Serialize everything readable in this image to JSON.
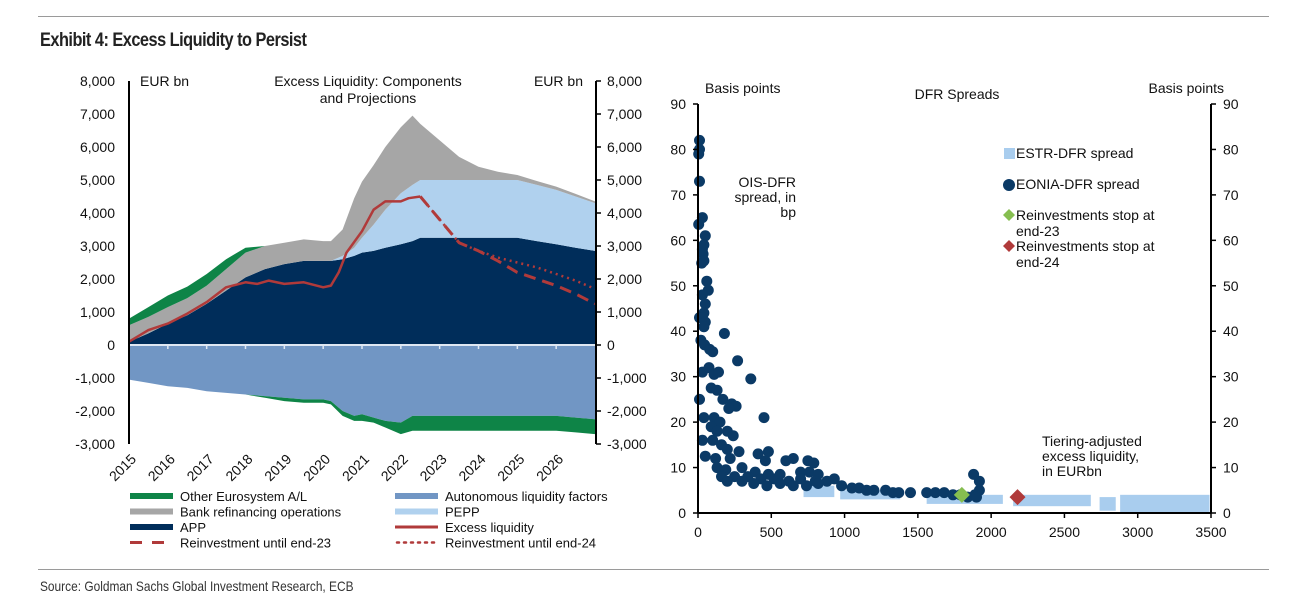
{
  "exhibit_title": "Exhibit 4: Excess Liquidity to Persist",
  "source": "Source: Goldman Sachs Global Investment Research, ECB",
  "colors": {
    "other_eurosystem": "#0e8447",
    "bank_refi": "#a6a6a6",
    "app": "#002d5a",
    "autonomous": "#7196c4",
    "pepp": "#b0d1ee",
    "excess": "#b03a3a",
    "estr": "#a9cdee",
    "eonia": "#0b3a66",
    "stop23": "#86be50",
    "stop24": "#b03a3a"
  },
  "chart_data": [
    {
      "type": "area",
      "title": "Excess Liquidity: Components and Projections",
      "ylabel_left": "EUR bn",
      "ylabel_right": "EUR bn",
      "ylim": [
        -3000,
        8000
      ],
      "yticks": [
        "8,000",
        "7,000",
        "6,000",
        "5,000",
        "4,000",
        "3,000",
        "2,000",
        "1,000",
        "0",
        "-1,000",
        "-2,000",
        "-3,000"
      ],
      "ytick_values": [
        8000,
        7000,
        6000,
        5000,
        4000,
        3000,
        2000,
        1000,
        0,
        -1000,
        -2000,
        -3000
      ],
      "xticks": [
        "2015",
        "2016",
        "2017",
        "2018",
        "2019",
        "2020",
        "2021",
        "2022",
        "2023",
        "2024",
        "2025",
        "2026"
      ],
      "xlim": [
        2015,
        2027
      ],
      "x": [
        2015.0,
        2015.5,
        2016.0,
        2016.5,
        2017.0,
        2017.5,
        2018.0,
        2018.5,
        2019.0,
        2019.5,
        2020.0,
        2020.2,
        2020.5,
        2020.8,
        2021.0,
        2021.3,
        2021.6,
        2022.0,
        2022.3,
        2022.5,
        2023.0,
        2023.5,
        2024.0,
        2024.5,
        2025.0,
        2025.5,
        2026.0,
        2026.5,
        2027.0
      ],
      "series": [
        {
          "name": "APP",
          "key": "app",
          "values": [
            100,
            350,
            650,
            900,
            1250,
            1650,
            2050,
            2300,
            2450,
            2550,
            2550,
            2550,
            2600,
            2700,
            2800,
            2850,
            2950,
            3050,
            3150,
            3250,
            3250,
            3250,
            3250,
            3250,
            3250,
            3150,
            3050,
            2950,
            2850
          ]
        },
        {
          "name": "PEPP",
          "key": "pepp",
          "values": [
            0,
            0,
            0,
            0,
            0,
            0,
            0,
            0,
            0,
            0,
            0,
            0,
            100,
            250,
            450,
            800,
            1150,
            1550,
            1700,
            1750,
            1750,
            1750,
            1750,
            1750,
            1750,
            1700,
            1650,
            1550,
            1450
          ]
        },
        {
          "name": "Bank refinancing operations",
          "key": "bank_refi",
          "values": [
            500,
            500,
            500,
            520,
            550,
            650,
            750,
            700,
            650,
            650,
            600,
            600,
            800,
            1500,
            1700,
            1800,
            1900,
            2000,
            2100,
            1700,
            1200,
            700,
            400,
            250,
            150,
            120,
            100,
            80,
            50
          ]
        },
        {
          "name": "Other Eurosystem A/L",
          "key": "other_eurosystem",
          "values": [
            200,
            300,
            350,
            350,
            350,
            300,
            150,
            0,
            0,
            0,
            0,
            0,
            0,
            0,
            0,
            0,
            0,
            0,
            0,
            0,
            0,
            0,
            0,
            0,
            0,
            0,
            0,
            0,
            0
          ]
        },
        {
          "name": "Autonomous liquidity factors",
          "key": "autonomous",
          "values": [
            -1050,
            -1150,
            -1250,
            -1300,
            -1400,
            -1450,
            -1500,
            -1550,
            -1600,
            -1650,
            -1650,
            -1700,
            -2000,
            -2150,
            -2100,
            -2200,
            -2300,
            -2350,
            -2150,
            -2150,
            -2150,
            -2150,
            -2150,
            -2150,
            -2150,
            -2150,
            -2150,
            -2200,
            -2250
          ]
        },
        {
          "name": "Other Eurosystem A/L (negative)",
          "key": "other_eurosystem",
          "values": [
            0,
            0,
            0,
            0,
            0,
            0,
            0,
            -50,
            -100,
            -100,
            -100,
            -100,
            -150,
            -150,
            -200,
            -150,
            -200,
            -350,
            -450,
            -450,
            -450,
            -450,
            -450,
            -450,
            -450,
            -450,
            -450,
            -450,
            -450
          ]
        }
      ],
      "lines": {
        "excess_liquidity": {
          "name": "Excess liquidity",
          "x": [
            2015.0,
            2015.5,
            2016.0,
            2016.5,
            2017.0,
            2017.5,
            2018.0,
            2018.3,
            2018.6,
            2019.0,
            2019.5,
            2020.0,
            2020.2,
            2020.4,
            2020.6,
            2021.0,
            2021.3,
            2021.6,
            2022.0,
            2022.2,
            2022.5
          ],
          "y": [
            100,
            450,
            650,
            950,
            1300,
            1750,
            1900,
            1850,
            1950,
            1850,
            1900,
            1750,
            1800,
            2200,
            2800,
            3450,
            4100,
            4350,
            4350,
            4450,
            4500
          ]
        },
        "reinvest_end23": {
          "name": "Reinvestment until end-23",
          "x": [
            2022.5,
            2023.0,
            2023.5,
            2024.0,
            2024.5,
            2025.0,
            2025.5,
            2026.0,
            2026.5,
            2027.0
          ],
          "y": [
            4500,
            3800,
            3100,
            2850,
            2550,
            2200,
            2000,
            1800,
            1550,
            1250
          ]
        },
        "reinvest_end24": {
          "name": "Reinvestment until end-24",
          "x": [
            2022.5,
            2023.0,
            2023.5,
            2024.0,
            2024.5,
            2025.0,
            2025.5,
            2026.0,
            2026.5,
            2027.0
          ],
          "y": [
            4500,
            3800,
            3100,
            2850,
            2650,
            2500,
            2350,
            2150,
            1950,
            1700
          ]
        }
      },
      "legend": [
        {
          "label": "Other Eurosystem A/L",
          "style": "bar",
          "color_key": "other_eurosystem"
        },
        {
          "label": "Autonomous liquidity factors",
          "style": "bar",
          "color_key": "autonomous"
        },
        {
          "label": "Bank refinancing operations",
          "style": "bar",
          "color_key": "bank_refi"
        },
        {
          "label": "PEPP",
          "style": "bar",
          "color_key": "pepp"
        },
        {
          "label": "APP",
          "style": "bar",
          "color_key": "app"
        },
        {
          "label": "Excess liquidity",
          "style": "line",
          "color_key": "excess"
        },
        {
          "label": "Reinvestment until end-23",
          "style": "dash",
          "color_key": "excess"
        },
        {
          "label": "Reinvestment until end-24",
          "style": "dot",
          "color_key": "excess"
        }
      ],
      "legend_position": "bottom"
    },
    {
      "type": "scatter",
      "title": "DFR Spreads",
      "ylabel_left": "Basis points",
      "ylabel_right": "Basis points",
      "xlim": [
        0,
        3500
      ],
      "ylim": [
        0,
        90
      ],
      "xticks": [
        0,
        500,
        1000,
        1500,
        2000,
        2500,
        3000,
        3500
      ],
      "yticks": [
        0,
        10,
        20,
        30,
        40,
        50,
        60,
        70,
        80,
        90
      ],
      "annotations": [
        {
          "text": "OIS-DFR spread, in bp",
          "lines": [
            "OIS-DFR",
            "spread, in",
            "bp"
          ]
        },
        {
          "text": "Tiering-adjusted excess liquidity, in EURbn",
          "lines": [
            "Tiering-adjusted",
            "excess liquidity,",
            "in EURbn"
          ]
        }
      ],
      "series": [
        {
          "name": "ESTR-DFR spread",
          "marker": "square",
          "color_key": "estr",
          "segments": [
            [
              720,
              930,
              3.5,
              6
            ],
            [
              970,
              1380,
              3,
              5
            ],
            [
              1560,
              2080,
              2,
              4
            ],
            [
              2150,
              2680,
              1.5,
              4
            ],
            [
              2740,
              2850,
              0.5,
              3.5
            ],
            [
              2880,
              3490,
              0,
              4
            ]
          ]
        },
        {
          "name": "EONIA-DFR spread",
          "marker": "circle",
          "color_key": "eonia",
          "points": [
            [
              10,
              82
            ],
            [
              10,
              80
            ],
            [
              5,
              79
            ],
            [
              10,
              73
            ],
            [
              5,
              63.5
            ],
            [
              30,
              65
            ],
            [
              50,
              61
            ],
            [
              40,
              59
            ],
            [
              30,
              58
            ],
            [
              35,
              57
            ],
            [
              25,
              55
            ],
            [
              40,
              55.5
            ],
            [
              60,
              51
            ],
            [
              70,
              49
            ],
            [
              30,
              48
            ],
            [
              50,
              46
            ],
            [
              40,
              44
            ],
            [
              10,
              43
            ],
            [
              30,
              43
            ],
            [
              50,
              42
            ],
            [
              40,
              41
            ],
            [
              20,
              38
            ],
            [
              45,
              37
            ],
            [
              80,
              36
            ],
            [
              100,
              35.5
            ],
            [
              180,
              39.5
            ],
            [
              270,
              33.5
            ],
            [
              30,
              31
            ],
            [
              75,
              32
            ],
            [
              110,
              30.5
            ],
            [
              140,
              31
            ],
            [
              360,
              29.5
            ],
            [
              10,
              25
            ],
            [
              90,
              27.5
            ],
            [
              130,
              27
            ],
            [
              170,
              25
            ],
            [
              230,
              24
            ],
            [
              260,
              23.5
            ],
            [
              210,
              23
            ],
            [
              40,
              21
            ],
            [
              110,
              21
            ],
            [
              150,
              20
            ],
            [
              450,
              21
            ],
            [
              90,
              19
            ],
            [
              130,
              18
            ],
            [
              200,
              18
            ],
            [
              240,
              17
            ],
            [
              30,
              16
            ],
            [
              100,
              16
            ],
            [
              160,
              15
            ],
            [
              200,
              14
            ],
            [
              280,
              13.5
            ],
            [
              410,
              13
            ],
            [
              480,
              13.5
            ],
            [
              50,
              12.5
            ],
            [
              120,
              12
            ],
            [
              220,
              12
            ],
            [
              460,
              11.5
            ],
            [
              600,
              11.5
            ],
            [
              650,
              12
            ],
            [
              750,
              11.5
            ],
            [
              790,
              11
            ],
            [
              130,
              10
            ],
            [
              190,
              9.5
            ],
            [
              300,
              10
            ],
            [
              390,
              9
            ],
            [
              480,
              8.5
            ],
            [
              560,
              8.5
            ],
            [
              700,
              9
            ],
            [
              760,
              9
            ],
            [
              820,
              8.5
            ],
            [
              160,
              8
            ],
            [
              250,
              8
            ],
            [
              340,
              8
            ],
            [
              430,
              7.5
            ],
            [
              520,
              7.5
            ],
            [
              620,
              7
            ],
            [
              700,
              7.5
            ],
            [
              800,
              7
            ],
            [
              880,
              7
            ],
            [
              930,
              7.5
            ],
            [
              200,
              7
            ],
            [
              300,
              7
            ],
            [
              380,
              6.5
            ],
            [
              470,
              6
            ],
            [
              560,
              6.5
            ],
            [
              650,
              6
            ],
            [
              740,
              6
            ],
            [
              820,
              6.5
            ],
            [
              980,
              6
            ],
            [
              1050,
              5.5
            ],
            [
              1100,
              5.5
            ],
            [
              1150,
              5
            ],
            [
              1200,
              5
            ],
            [
              1280,
              5
            ],
            [
              1330,
              4.5
            ],
            [
              1370,
              4.5
            ],
            [
              1450,
              4.5
            ],
            [
              1560,
              4.5
            ],
            [
              1620,
              4.5
            ],
            [
              1680,
              4.5
            ],
            [
              1740,
              4
            ],
            [
              1790,
              4
            ],
            [
              1840,
              3.5
            ],
            [
              1890,
              4
            ],
            [
              1920,
              5
            ],
            [
              1920,
              7
            ],
            [
              1880,
              8.5
            ],
            [
              1900,
              3.5
            ]
          ]
        },
        {
          "name": "Reinvestments stop at end-23",
          "marker": "diamond",
          "color_key": "stop23",
          "points": [
            [
              1800,
              4
            ]
          ]
        },
        {
          "name": "Reinvestments stop at end-24",
          "marker": "diamond",
          "color_key": "stop24",
          "points": [
            [
              2180,
              3.5
            ]
          ]
        }
      ],
      "legend": [
        {
          "label": "ESTR-DFR spread",
          "lines": [
            "ESTR-DFR spread"
          ],
          "marker": "square",
          "color_key": "estr"
        },
        {
          "label": "EONIA-DFR spread",
          "lines": [
            "EONIA-DFR spread"
          ],
          "marker": "circle",
          "color_key": "eonia"
        },
        {
          "label": "Reinvestments stop at end-23",
          "lines": [
            "Reinvestments stop at",
            "end-23"
          ],
          "marker": "diamond",
          "color_key": "stop23"
        },
        {
          "label": "Reinvestments stop at end-24",
          "lines": [
            "Reinvestments stop at",
            "end-24"
          ],
          "marker": "diamond",
          "color_key": "stop24"
        }
      ],
      "legend_position": "top-right"
    }
  ]
}
